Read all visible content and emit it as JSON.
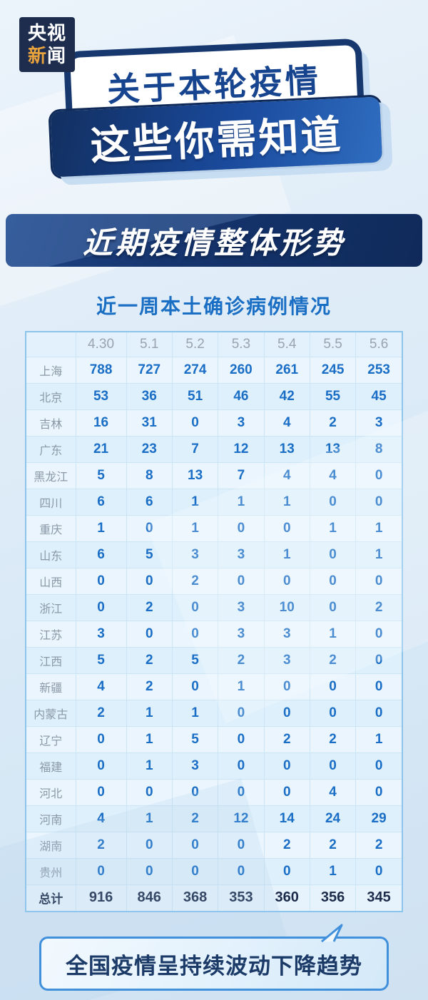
{
  "logo": {
    "line1": "央视",
    "line2_accent": "新",
    "line2_rest": "闻"
  },
  "title": {
    "line1": "关于本轮疫情",
    "line2": "这些你需知道"
  },
  "section": {
    "heading": "近期疫情整体形势"
  },
  "footer": {
    "note_light": "全国疫情呈",
    "note_strong": "持续波动下降趋势"
  },
  "colors": {
    "navy_panel": "#16356e",
    "banner_blue": "#1a4a9c",
    "title_text_blue": "#17448f",
    "table_title_blue": "#1a6fc4",
    "value_blue": "#1a6ec5",
    "label_gray": "#8b99a6",
    "total_navy": "#1c2b49",
    "table_border": "#8cc4ec",
    "bubble_border": "#4190dc",
    "logo_accent_orange": "#e8a33d",
    "page_bg": "#dcebf7"
  },
  "chart_data": {
    "type": "table",
    "title": "近一周本土确诊病例情况",
    "columns": [
      "4.30",
      "5.1",
      "5.2",
      "5.3",
      "5.4",
      "5.5",
      "5.6"
    ],
    "rows": [
      {
        "label": "上海",
        "values": [
          788,
          727,
          274,
          260,
          261,
          245,
          253
        ]
      },
      {
        "label": "北京",
        "values": [
          53,
          36,
          51,
          46,
          42,
          55,
          45
        ]
      },
      {
        "label": "吉林",
        "values": [
          16,
          31,
          0,
          3,
          4,
          2,
          3
        ]
      },
      {
        "label": "广东",
        "values": [
          21,
          23,
          7,
          12,
          13,
          13,
          8
        ]
      },
      {
        "label": "黑龙江",
        "values": [
          5,
          8,
          13,
          7,
          4,
          4,
          0
        ]
      },
      {
        "label": "四川",
        "values": [
          6,
          6,
          1,
          1,
          1,
          0,
          0
        ]
      },
      {
        "label": "重庆",
        "values": [
          1,
          0,
          1,
          0,
          0,
          1,
          1
        ]
      },
      {
        "label": "山东",
        "values": [
          6,
          5,
          3,
          3,
          1,
          0,
          1
        ]
      },
      {
        "label": "山西",
        "values": [
          0,
          0,
          2,
          0,
          0,
          0,
          0
        ]
      },
      {
        "label": "浙江",
        "values": [
          0,
          2,
          0,
          3,
          10,
          0,
          2
        ]
      },
      {
        "label": "江苏",
        "values": [
          3,
          0,
          0,
          3,
          3,
          1,
          0
        ]
      },
      {
        "label": "江西",
        "values": [
          5,
          2,
          5,
          2,
          3,
          2,
          0
        ]
      },
      {
        "label": "新疆",
        "values": [
          4,
          2,
          0,
          1,
          0,
          0,
          0
        ]
      },
      {
        "label": "内蒙古",
        "values": [
          2,
          1,
          1,
          0,
          0,
          0,
          0
        ]
      },
      {
        "label": "辽宁",
        "values": [
          0,
          1,
          5,
          0,
          2,
          2,
          1
        ]
      },
      {
        "label": "福建",
        "values": [
          0,
          1,
          3,
          0,
          0,
          0,
          0
        ]
      },
      {
        "label": "河北",
        "values": [
          0,
          0,
          0,
          0,
          0,
          4,
          0
        ]
      },
      {
        "label": "河南",
        "values": [
          4,
          1,
          2,
          12,
          14,
          24,
          29
        ]
      },
      {
        "label": "湖南",
        "values": [
          2,
          0,
          0,
          0,
          2,
          2,
          2
        ]
      },
      {
        "label": "贵州",
        "values": [
          0,
          0,
          0,
          0,
          0,
          1,
          0
        ]
      }
    ],
    "total": {
      "label": "总计",
      "values": [
        916,
        846,
        368,
        353,
        360,
        356,
        345
      ]
    }
  }
}
